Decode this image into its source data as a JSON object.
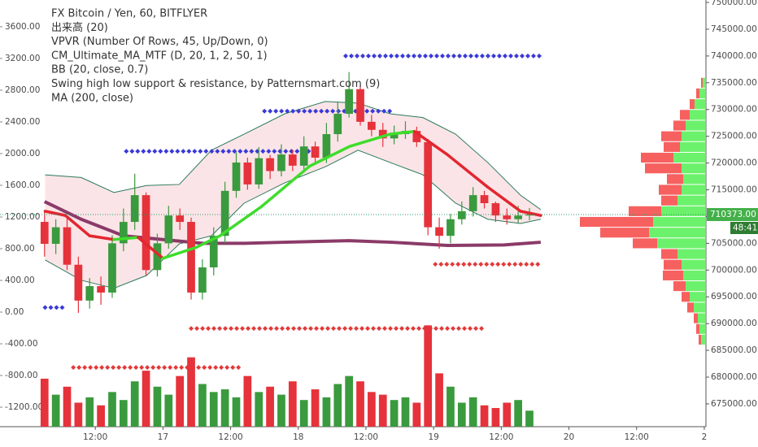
{
  "chart_data": {
    "type": "candlestick",
    "legend_lines": [
      "FX Bitcoin / Yen, 60, BITFLYER",
      "出来高 (20)",
      "VPVR (Number Of Rows, 45, Up/Down, 0)",
      "CM_Ultimate_MA_MTF (D, 20, 1, 2, 50, 1)",
      "BB (20, close, 0.7)",
      "Swing high low support & resistance, by Patternsmart.com (9)",
      "MA (200, close)"
    ],
    "x": [
      3,
      5,
      7,
      9,
      11,
      13,
      15,
      17,
      19,
      21,
      23,
      25,
      27,
      29,
      31,
      33,
      35,
      37,
      39,
      41,
      43,
      45,
      47,
      49,
      51,
      53,
      55,
      57,
      59,
      61,
      63,
      65,
      67,
      69,
      71,
      73,
      75,
      77,
      79,
      81,
      83,
      85,
      87,
      89
    ],
    "xlim": [
      -4.9,
      120.3
    ],
    "xticks": [
      {
        "value": 12,
        "label": "12:00"
      },
      {
        "value": 24,
        "label": "17"
      },
      {
        "value": 36,
        "label": "12:00"
      },
      {
        "value": 48,
        "label": "18"
      },
      {
        "value": 60,
        "label": "12:00"
      },
      {
        "value": 72,
        "label": "19"
      },
      {
        "value": 84,
        "label": "12:00"
      },
      {
        "value": 96,
        "label": "20"
      },
      {
        "value": 108,
        "label": "12:00"
      },
      {
        "value": 120,
        "label": "2"
      }
    ],
    "open": [
      709000,
      704900,
      708000,
      701000,
      694300,
      697000,
      695800,
      705000,
      709000,
      714000,
      700000,
      705000,
      710200,
      709000,
      695800,
      700500,
      706400,
      714800,
      720100,
      716000,
      720900,
      718500,
      721600,
      719500,
      723100,
      721000,
      725400,
      729200,
      733800,
      727700,
      726200,
      724600,
      725400,
      726000,
      723900,
      708000,
      706400,
      709500,
      711000,
      714000,
      712500,
      710200,
      709500,
      710200
    ],
    "high": [
      711000,
      709500,
      709800,
      702500,
      698500,
      698800,
      706500,
      711500,
      718000,
      714500,
      706800,
      712000,
      711500,
      709800,
      702000,
      708000,
      716500,
      722000,
      721000,
      723000,
      721500,
      723500,
      722500,
      725000,
      724000,
      727500,
      731500,
      737000,
      734500,
      729000,
      727500,
      727000,
      727800,
      726800,
      724500,
      709800,
      710500,
      712800,
      715500,
      714800,
      712800,
      711500,
      712000,
      711600
    ],
    "low": [
      702500,
      703000,
      700000,
      692000,
      692800,
      693500,
      694800,
      703500,
      707500,
      699000,
      698800,
      704000,
      707500,
      694500,
      694500,
      699000,
      705000,
      713500,
      715000,
      715200,
      717000,
      717500,
      718500,
      718800,
      719800,
      720000,
      724000,
      728500,
      727000,
      725000,
      723000,
      723500,
      724500,
      723000,
      706500,
      704000,
      705000,
      708500,
      710000,
      711500,
      709000,
      708500,
      708800,
      709300
    ],
    "close": [
      704900,
      708000,
      701000,
      694300,
      697000,
      695800,
      705000,
      709000,
      714000,
      700000,
      705000,
      710200,
      709000,
      695800,
      700500,
      706400,
      714800,
      720100,
      716000,
      720900,
      718500,
      721600,
      719500,
      723100,
      721000,
      725400,
      729200,
      733800,
      727700,
      726200,
      724600,
      725400,
      726000,
      723900,
      708000,
      706400,
      709500,
      711000,
      714000,
      712500,
      710200,
      709500,
      710200,
      710373
    ],
    "up_color": "#3a9a3e",
    "down_color": "#e6323b",
    "ylim": [
      670740,
      750460
    ],
    "yticks": [
      {
        "value": 750000,
        "label": "750000.00"
      },
      {
        "value": 745000,
        "label": "745000.00"
      },
      {
        "value": 740000,
        "label": "740000.00"
      },
      {
        "value": 735000,
        "label": "735000.00"
      },
      {
        "value": 730000,
        "label": "730000.00"
      },
      {
        "value": 725000,
        "label": "725000.00"
      },
      {
        "value": 720000,
        "label": "720000.00"
      },
      {
        "value": 715000,
        "label": "715000.00"
      },
      {
        "value": 710000,
        "label": "710000.00"
      },
      {
        "value": 705000,
        "label": "705000.00"
      },
      {
        "value": 700000,
        "label": "700000.00"
      },
      {
        "value": 695000,
        "label": "695000.00"
      },
      {
        "value": 690000,
        "label": "690000.00"
      },
      {
        "value": 685000,
        "label": "685000.00"
      },
      {
        "value": 680000,
        "label": "680000.00"
      },
      {
        "value": 675000,
        "label": "675000.00"
      }
    ],
    "y2lim": [
      -1446,
      3938
    ],
    "y2ticks": [
      {
        "value": 3600,
        "label": "3600.00"
      },
      {
        "value": 3200,
        "label": "3200.00"
      },
      {
        "value": 2800,
        "label": "2800.00"
      },
      {
        "value": 2400,
        "label": "2400.00"
      },
      {
        "value": 2000,
        "label": "2000.00"
      },
      {
        "value": 1600,
        "label": "1600.00"
      },
      {
        "value": 1200,
        "label": "1200.00"
      },
      {
        "value": 800,
        "label": "800.00"
      },
      {
        "value": 400,
        "label": "400.00"
      },
      {
        "value": 0,
        "label": "0.00"
      },
      {
        "value": -400,
        "label": "-400.00"
      },
      {
        "value": -800,
        "label": "-800.00"
      },
      {
        "value": -1200,
        "label": "-1200.00"
      }
    ],
    "volume": {
      "values": [
        1800,
        1200,
        1500,
        900,
        1100,
        800,
        1300,
        1000,
        1700,
        2100,
        1500,
        1200,
        1900,
        2600,
        1600,
        1300,
        1400,
        1100,
        1900,
        1300,
        1500,
        1200,
        1700,
        1000,
        1400,
        1100,
        1600,
        1900,
        1700,
        1300,
        1200,
        1000,
        1100,
        900,
        3800,
        2000,
        1500,
        900,
        1100,
        800,
        700,
        900,
        1000,
        600
      ],
      "ylim": [
        0,
        16000
      ]
    },
    "ma200": {
      "x": [
        3,
        9.5,
        17,
        24,
        31,
        38.5,
        45.5,
        57,
        64.5,
        74.5,
        84.5,
        91
      ],
      "values": [
        712800,
        709500,
        706400,
        705700,
        705000,
        705000,
        705200,
        705500,
        705200,
        704600,
        704700,
        705200
      ],
      "color": "#8b3a68"
    },
    "cm_ma": {
      "x": [
        3.1,
        6.7,
        11,
        15.3,
        19.6,
        24,
        29.8,
        34.1,
        41.4,
        50,
        57.1,
        64.3,
        68.6,
        74.4,
        81.6,
        87.4,
        91
      ],
      "values": [
        711000,
        710200,
        706400,
        705700,
        706100,
        702200,
        704200,
        706400,
        711800,
        719400,
        723100,
        725400,
        725900,
        721600,
        715500,
        711000,
        710200
      ],
      "up_color": "#3fdc2c",
      "down_color": "#e3262f"
    },
    "bollinger": {
      "x": [
        3.1,
        9.5,
        15.3,
        21.1,
        26.9,
        32.6,
        38.4,
        45.6,
        52.8,
        58.6,
        64.3,
        70.1,
        75.9,
        81.6,
        87.4,
        91
      ],
      "upper": [
        717800,
        717300,
        714500,
        715800,
        716000,
        722400,
        725400,
        729200,
        731500,
        731200,
        729200,
        728500,
        725400,
        720100,
        714000,
        711300
      ],
      "lower": [
        701900,
        698100,
        696600,
        699000,
        704900,
        706400,
        712500,
        716300,
        719300,
        722400,
        720100,
        717800,
        712500,
        709500,
        708700,
        709500
      ],
      "color": "#2a7a5c",
      "fill": "#fbe4e7"
    },
    "levels": [
      {
        "value": 740000,
        "x": [
          56.4,
          91
        ],
        "color": "#3a3ad8"
      },
      {
        "value": 729700,
        "x": [
          42,
          65
        ],
        "color": "#3a3ad8"
      },
      {
        "value": 722200,
        "x": [
          17.5,
          50.6
        ],
        "color": "#3a3ad8"
      },
      {
        "value": 693000,
        "x": [
          3.1,
          6.7
        ],
        "color": "#3a3ad8"
      },
      {
        "value": 701100,
        "x": [
          72.3,
          91
        ],
        "color": "#e23a3a"
      },
      {
        "value": 689100,
        "x": [
          29,
          81
        ],
        "color": "#e23a3a"
      },
      {
        "value": 681800,
        "x": [
          8.1,
          37.7
        ],
        "color": "#e23a3a"
      }
    ],
    "vpvr": {
      "bins": [
        686000,
        688000,
        690000,
        692000,
        694000,
        696000,
        698000,
        700000,
        702000,
        704000,
        706000,
        708000,
        710000,
        712000,
        714000,
        716000,
        718000,
        720000,
        722000,
        724000,
        726000,
        728000,
        730000,
        732000,
        734000,
        736000
      ],
      "up": [
        6,
        8,
        10,
        15,
        20,
        25,
        28,
        30,
        35,
        60,
        70,
        65,
        55,
        35,
        30,
        28,
        30,
        40,
        32,
        30,
        25,
        20,
        14,
        8,
        4
      ],
      "down": [
        3,
        4,
        5,
        8,
        10,
        15,
        25,
        22,
        20,
        30,
        60,
        90,
        40,
        20,
        28,
        20,
        45,
        40,
        20,
        25,
        15,
        12,
        6,
        4,
        2
      ],
      "xlim": [
        0,
        200
      ],
      "up_color": "#5cf05c",
      "down_color": "#f5504f"
    },
    "last_price": {
      "value": 710373,
      "label": "710373.00"
    },
    "countdown": "48:41"
  }
}
